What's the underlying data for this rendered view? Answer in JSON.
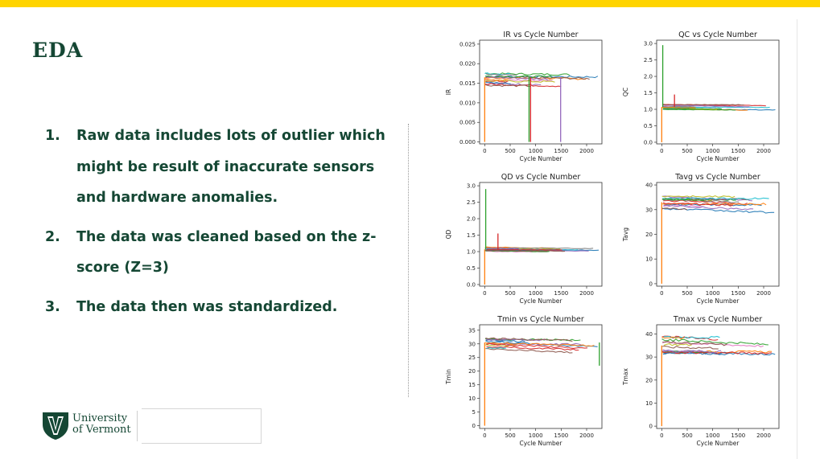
{
  "slide": {
    "title": "EDA",
    "bullets": [
      {
        "num": "1.",
        "text": "Raw data includes lots of outlier which might be result of inaccurate sensors and hardware anomalies."
      },
      {
        "num": "2.",
        "text": "The data was cleaned based on the z-score (Z=3)"
      },
      {
        "num": "3.",
        "text": "The data then was standardized."
      }
    ],
    "logo": {
      "line1": "University",
      "line2": "of Vermont"
    },
    "colors": {
      "accent_bar": "#ffd400",
      "brand_green": "#154734"
    }
  },
  "chart_data": [
    {
      "type": "line",
      "title": "IR vs Cycle Number",
      "xlabel": "Cycle Number",
      "ylabel": "IR",
      "xlim": [
        -100,
        2300
      ],
      "ylim": [
        -0.0005,
        0.026
      ],
      "xticks": [
        0,
        500,
        1000,
        1500,
        2000
      ],
      "yticks": [
        0.0,
        0.005,
        0.01,
        0.015,
        0.02,
        0.025
      ],
      "ytick_labels": [
        "0.000",
        "0.005",
        "0.010",
        "0.015",
        "0.020",
        "0.025"
      ],
      "base": 0.0165,
      "series_band": 0.004,
      "spikes": [
        {
          "x": 0,
          "y": 0
        },
        {
          "x": 870,
          "y": 0
        },
        {
          "x": 900,
          "y": 0
        },
        {
          "x": 1490,
          "y": 0
        }
      ],
      "end_x": 2250
    },
    {
      "type": "line",
      "title": "QC vs Cycle Number",
      "xlabel": "Cycle Number",
      "ylabel": "QC",
      "xlim": [
        -100,
        2300
      ],
      "ylim": [
        -0.05,
        3.1
      ],
      "xticks": [
        0,
        500,
        1000,
        1500,
        2000
      ],
      "yticks": [
        0.0,
        0.5,
        1.0,
        1.5,
        2.0,
        2.5,
        3.0
      ],
      "ytick_labels": [
        "0.0",
        "0.5",
        "1.0",
        "1.5",
        "2.0",
        "2.5",
        "3.0"
      ],
      "base": 1.07,
      "series_band": 0.15,
      "spikes": [
        {
          "x": 0,
          "y": 0
        },
        {
          "x": 20,
          "y": 2.95
        },
        {
          "x": 250,
          "y": 1.45
        }
      ],
      "end_x": 2250
    },
    {
      "type": "line",
      "title": "QD vs Cycle Number",
      "xlabel": "Cycle Number",
      "ylabel": "QD",
      "xlim": [
        -100,
        2300
      ],
      "ylim": [
        -0.05,
        3.1
      ],
      "xticks": [
        0,
        500,
        1000,
        1500,
        2000
      ],
      "yticks": [
        0.0,
        0.5,
        1.0,
        1.5,
        2.0,
        2.5,
        3.0
      ],
      "ytick_labels": [
        "0.0",
        "0.5",
        "1.0",
        "1.5",
        "2.0",
        "2.5",
        "3.0"
      ],
      "base": 1.07,
      "series_band": 0.15,
      "spikes": [
        {
          "x": 0,
          "y": 0
        },
        {
          "x": 20,
          "y": 2.9
        },
        {
          "x": 260,
          "y": 1.55
        }
      ],
      "end_x": 2250
    },
    {
      "type": "line",
      "title": "Tavg vs Cycle Number",
      "xlabel": "Cycle Number",
      "ylabel": "Tavg",
      "xlim": [
        -100,
        2300
      ],
      "ylim": [
        -1,
        41
      ],
      "xticks": [
        0,
        500,
        1000,
        1500,
        2000
      ],
      "yticks": [
        0,
        10,
        20,
        30,
        40
      ],
      "ytick_labels": [
        "0",
        "10",
        "20",
        "30",
        "40"
      ],
      "base": 33,
      "series_band": 6,
      "spikes": [
        {
          "x": 0,
          "y": 0
        }
      ],
      "end_x": 2250
    },
    {
      "type": "line",
      "title": "Tmin vs Cycle Number",
      "xlabel": "Cycle Number",
      "ylabel": "Tmin",
      "xlim": [
        -100,
        2300
      ],
      "ylim": [
        -1,
        37
      ],
      "xticks": [
        0,
        500,
        1000,
        1500,
        2000
      ],
      "yticks": [
        0,
        5,
        10,
        15,
        20,
        25,
        30,
        35
      ],
      "ytick_labels": [
        "0",
        "5",
        "10",
        "15",
        "20",
        "25",
        "30",
        "35"
      ],
      "base": 30.5,
      "series_band": 5,
      "spikes": [
        {
          "x": 0,
          "y": 0
        },
        {
          "x": 2250,
          "y": 22
        }
      ],
      "end_x": 2250
    },
    {
      "type": "line",
      "title": "Tmax vs Cycle Number",
      "xlabel": "Cycle Number",
      "ylabel": "Tmax",
      "xlim": [
        -100,
        2300
      ],
      "ylim": [
        -1,
        44
      ],
      "xticks": [
        0,
        500,
        1000,
        1500,
        2000
      ],
      "yticks": [
        0,
        10,
        20,
        30,
        40
      ],
      "ytick_labels": [
        "0",
        "10",
        "20",
        "30",
        "40"
      ],
      "base": 35,
      "series_band": 8,
      "spikes": [
        {
          "x": 0,
          "y": 0
        }
      ],
      "end_x": 2250
    }
  ]
}
